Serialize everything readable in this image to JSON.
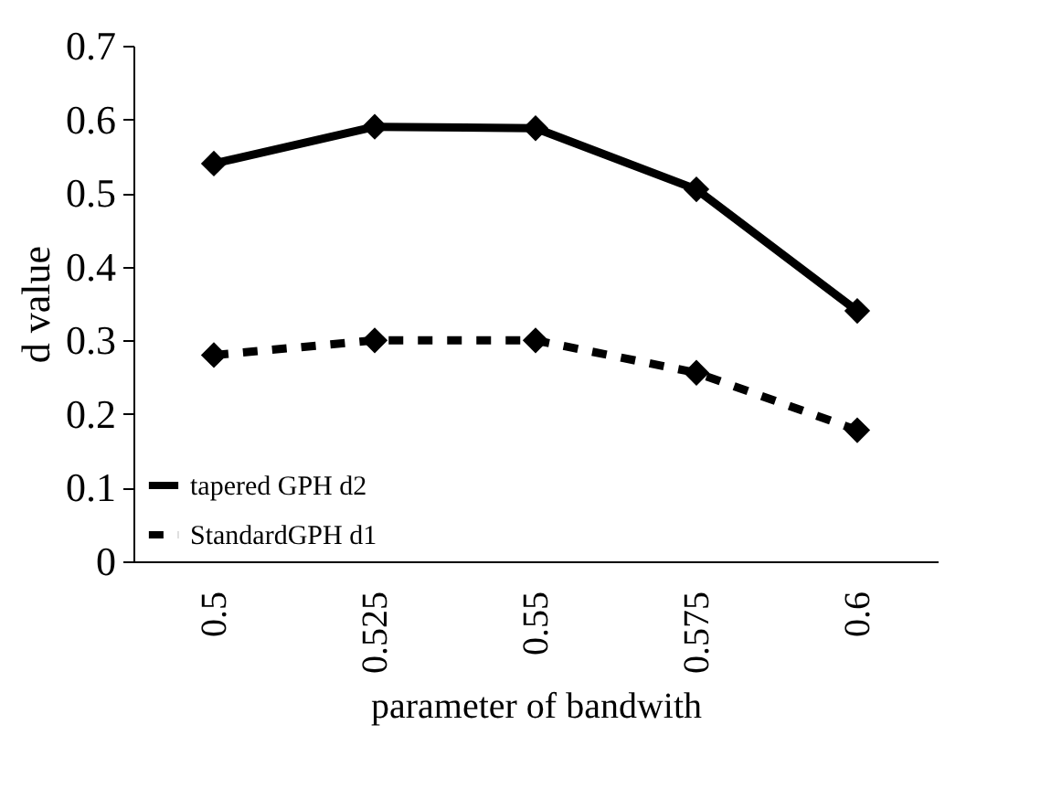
{
  "chart_data": {
    "type": "line",
    "xlabel": "parameter of bandwith",
    "ylabel": "d value",
    "categories": [
      "0.5",
      "0.525",
      "0.55",
      "0.575",
      "0.6"
    ],
    "series": [
      {
        "name": "tapered GPH d2",
        "color": "#000000",
        "line_style": "solid",
        "values": [
          0.54,
          0.59,
          0.588,
          0.505,
          0.34
        ]
      },
      {
        "name": "StandardGPH d1",
        "color": "#000000",
        "line_style": "dashed",
        "values": [
          0.28,
          0.3,
          0.3,
          0.256,
          0.178
        ]
      }
    ],
    "ylim": [
      0,
      0.7
    ],
    "yticks": [
      0,
      0.1,
      0.2,
      0.3,
      0.4,
      0.5,
      0.6,
      0.7
    ],
    "grid": false,
    "legend": "bottom left",
    "marker": "diamond"
  }
}
